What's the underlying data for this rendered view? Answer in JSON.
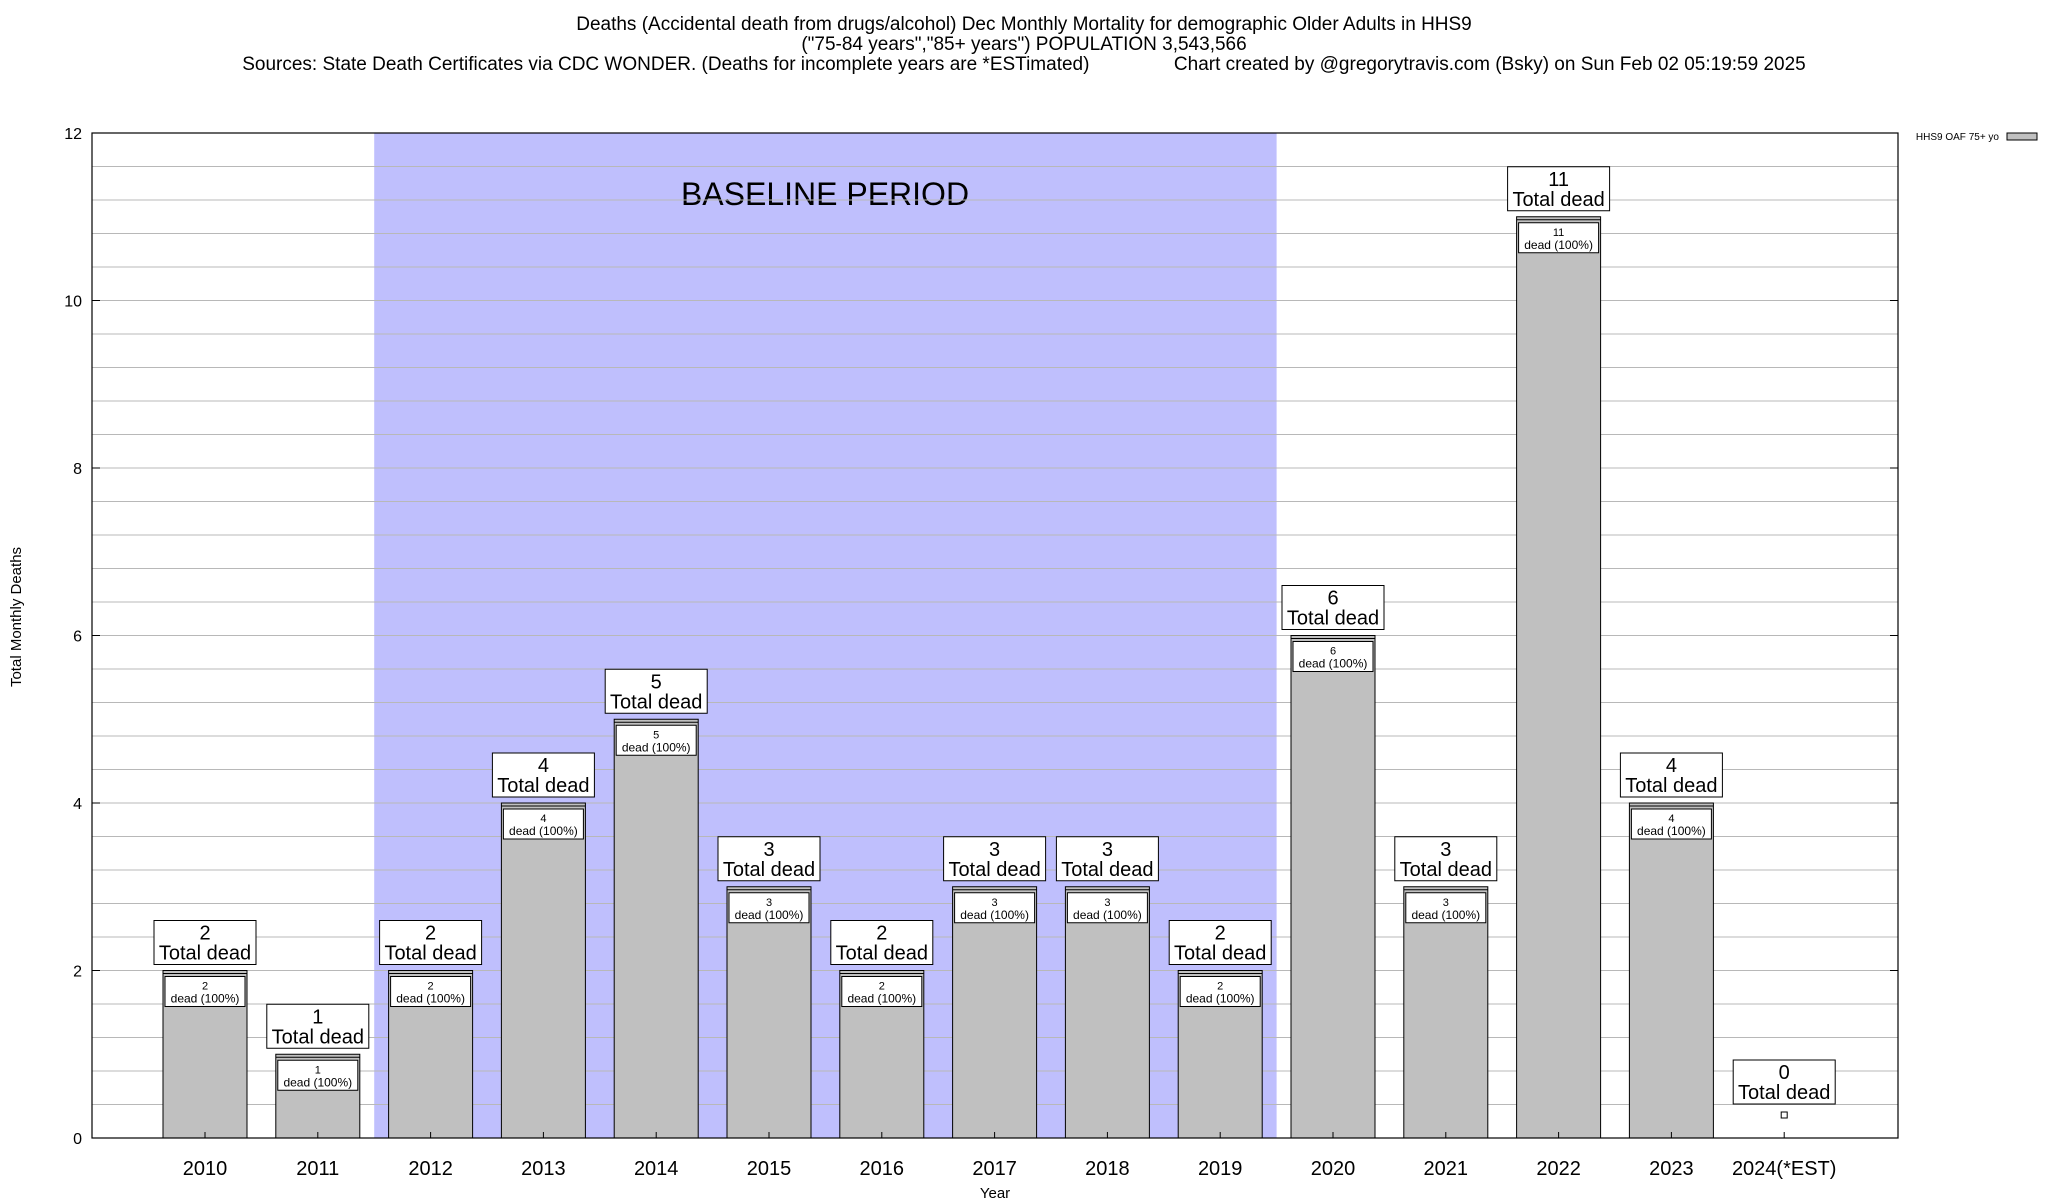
{
  "chart_data": {
    "type": "bar",
    "title": "Deaths (Accidental death from drugs/alcohol) Dec Monthly Mortality for demographic Older Adults in HHS9",
    "subtitle": "(\"75-84 years\",\"85+ years\") POPULATION 3,543,566",
    "source_note": "Sources: State Death Certificates via CDC WONDER. (Deaths for incomplete years are *ESTimated)",
    "credit_note": "Chart created by @gregorytravis.com (Bsky) on Sun Feb 02 05:19:59 2025",
    "xlabel": "Year",
    "ylabel": "Total Monthly Deaths",
    "ylim": [
      0,
      12
    ],
    "y_ticks": [
      "0",
      "2",
      "4",
      "6",
      "8",
      "10",
      "12"
    ],
    "grid": true,
    "legend": {
      "position": "top-right",
      "entries": [
        "HHS9 OAF 75+ yo"
      ]
    },
    "categories": [
      "2010",
      "2011",
      "2012",
      "2013",
      "2014",
      "2015",
      "2016",
      "2017",
      "2018",
      "2019",
      "2020",
      "2021",
      "2022",
      "2023",
      "2024(*EST)"
    ],
    "series": [
      {
        "name": "HHS9 OAF 75+ yo",
        "values": [
          2,
          1,
          2,
          4,
          5,
          3,
          2,
          3,
          3,
          2,
          6,
          3,
          11,
          4,
          0
        ]
      }
    ],
    "total_label_suffix": "Total dead",
    "inner_label_suffix": "dead (100%)",
    "shaded_region": {
      "label": "BASELINE PERIOD",
      "from": "2012",
      "to": "2019"
    },
    "colors": {
      "bar": "#c0c0c0",
      "baseline": "#bfbffd",
      "grid": "#b8b8b8"
    }
  }
}
